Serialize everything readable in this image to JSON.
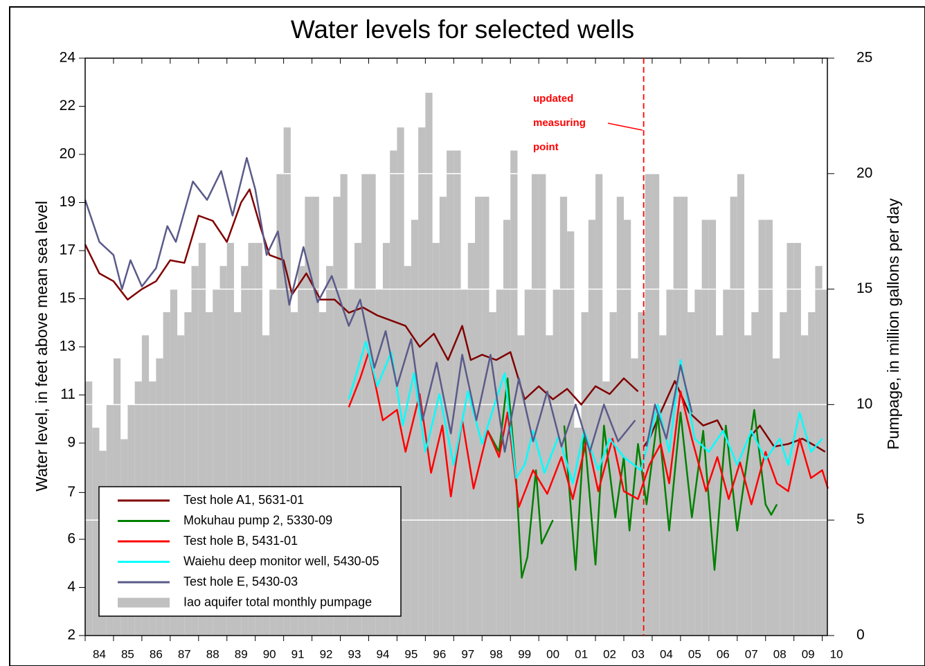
{
  "chart_data": {
    "type": "line",
    "title": "Water levels for selected wells",
    "y_label": "Water level, in feet above mean sea level",
    "y2_label": "Pumpage, in million gallons per day",
    "annotation_lines": [
      "updated",
      "measuring",
      "point"
    ],
    "annotation_color": "#ff0000",
    "marker_x": 2003.7,
    "xlim": [
      1984,
      2010.18
    ],
    "xticks": [
      {
        "value": 1984,
        "label": "84"
      },
      {
        "value": 1985,
        "label": "85"
      },
      {
        "value": 1986,
        "label": "86"
      },
      {
        "value": 1987,
        "label": "87"
      },
      {
        "value": 1988,
        "label": "88"
      },
      {
        "value": 1989,
        "label": "89"
      },
      {
        "value": 1990,
        "label": "90"
      },
      {
        "value": 1991,
        "label": "91"
      },
      {
        "value": 1992,
        "label": "92"
      },
      {
        "value": 1993,
        "label": "93"
      },
      {
        "value": 1994,
        "label": "94"
      },
      {
        "value": 1995,
        "label": "95"
      },
      {
        "value": 1996,
        "label": "96"
      },
      {
        "value": 1997,
        "label": "97"
      },
      {
        "value": 1998,
        "label": "98"
      },
      {
        "value": 1999,
        "label": "99"
      },
      {
        "value": 2000,
        "label": "00"
      },
      {
        "value": 2001,
        "label": "01"
      },
      {
        "value": 2002,
        "label": "02"
      },
      {
        "value": 2003,
        "label": "03"
      },
      {
        "value": 2004,
        "label": "04"
      },
      {
        "value": 2005,
        "label": "05"
      },
      {
        "value": 2006,
        "label": "06"
      },
      {
        "value": 2007,
        "label": "07"
      },
      {
        "value": 2008,
        "label": "08"
      },
      {
        "value": 2009,
        "label": "09"
      },
      {
        "value": 2010,
        "label": "10"
      }
    ],
    "ylim": [
      2,
      24
    ],
    "yticks": [
      2,
      {
        "value": 3.8333,
        "label": "4"
      },
      {
        "value": 5.6667,
        "label": "6"
      },
      {
        "value": 7.45,
        "label": "7"
      },
      {
        "value": 9.3333,
        "label": "9"
      },
      {
        "value": 11.1667,
        "label": "11"
      },
      13,
      {
        "value": 14.8333,
        "label": "15"
      },
      {
        "value": 16.6667,
        "label": "17"
      },
      {
        "value": 18.5,
        "label": "19"
      },
      {
        "value": 20.3333,
        "label": "20"
      },
      {
        "value": 22.1667,
        "label": "22"
      },
      24
    ],
    "y2lim": [
      0,
      25
    ],
    "y2ticks": [
      0,
      5,
      10,
      15,
      20,
      25
    ],
    "grid": true,
    "grid_color": "#ffffff",
    "legend": "lower left",
    "series": [
      {
        "name": "Test hole A1, 5631-01",
        "color": "#800000",
        "x": [
          1984,
          1984.5,
          1985,
          1985.5,
          1986,
          1986.5,
          1987,
          1987.5,
          1988,
          1988.5,
          1989,
          1989.5,
          1989.8,
          1990.2,
          1990.5,
          1991,
          1991.3,
          1991.8,
          1992.3,
          1992.8,
          1993.3,
          1993.8,
          1994.3,
          1994.8,
          1995.3,
          1995.8,
          1996.3,
          1996.8,
          1997.3,
          1997.6,
          1998,
          1998.5,
          1999,
          1999.5,
          2000,
          2000.5,
          2001,
          2001.5,
          2002,
          2002.5,
          2003,
          2003.5,
          2003.6,
          2003.7,
          2003.9,
          2004.3,
          2004.8,
          2005.3,
          2005.8,
          2006.3,
          2006.6,
          2007,
          2007.4,
          2007.8,
          2008.3,
          2008.8,
          2009.3,
          2009.8,
          2010.1
        ],
        "values": [
          16.9,
          15.8,
          15.5,
          14.8,
          15.2,
          15.5,
          16.3,
          16.2,
          18,
          17.8,
          17,
          18.5,
          19,
          17.5,
          16.5,
          16.3,
          15,
          15.8,
          14.8,
          14.8,
          14.3,
          14.5,
          14.2,
          14,
          13.8,
          13,
          13.5,
          12.5,
          13.8,
          12.5,
          12.7,
          12.5,
          12.8,
          11,
          11.5,
          11,
          11.4,
          10.8,
          11.5,
          11.2,
          11.8,
          11.3,
          null,
          9.2,
          9.5,
          10.5,
          11.7,
          10.5,
          10,
          10.2,
          9.6,
          null,
          9.5,
          10,
          9.2,
          9.3,
          9.5,
          9.2,
          9
        ]
      },
      {
        "name": "Mokuhau pump 2, 5330-09",
        "color": "#008000",
        "x": [
          1998.2,
          1998.6,
          1998.9,
          1999.2,
          1999.4,
          1999.6,
          1999.9,
          2000.1,
          2000.5,
          2000.7,
          2000.9,
          2001.3,
          2001.6,
          2002,
          2002.3,
          2002.7,
          2003,
          2003.2,
          2003.5,
          2003.8,
          2004.2,
          2004.6,
          2005,
          2005.4,
          2005.8,
          2006.2,
          2006.6,
          2007,
          2007.6,
          2008,
          2008.2,
          2008.4
        ],
        "values": [
          9.8,
          9,
          11.8,
          8,
          4.2,
          5,
          8.3,
          5.5,
          6.4,
          null,
          10,
          4.5,
          9.8,
          4.7,
          10,
          6.5,
          8.8,
          6,
          9.3,
          7,
          10.4,
          6,
          10.5,
          6.5,
          9.8,
          4.5,
          10,
          6,
          10.6,
          7,
          6.6,
          7
        ]
      },
      {
        "name": "Test hole B, 5431-01",
        "color": "#ff0000",
        "x": [
          1993.3,
          1993.7,
          1994,
          1994.5,
          1995,
          1995.3,
          1995.8,
          1996.2,
          1996.6,
          1996.9,
          1997.3,
          1997.7,
          1998.2,
          1998.6,
          1998.9,
          1999.3,
          1999.8,
          2000.3,
          2000.8,
          2001.2,
          2001.7,
          2002.1,
          2002.6,
          2003,
          2003.5,
          2003.9,
          2004.3,
          2004.6,
          2005,
          2005.4,
          2005.9,
          2006.3,
          2006.7,
          2007.1,
          2007.5,
          2008,
          2008.4,
          2008.8,
          2009.2,
          2009.6,
          2010,
          2010.2
        ],
        "values": [
          10.7,
          11.8,
          12.8,
          10.2,
          10.6,
          9,
          11.2,
          8.2,
          10,
          7.3,
          10.2,
          7.6,
          9.8,
          8.8,
          10.5,
          6.9,
          8.3,
          7.4,
          8.8,
          7.2,
          9.5,
          7.5,
          9.5,
          7.5,
          7.2,
          8.5,
          9.3,
          7.8,
          11.3,
          9.5,
          7.5,
          8.8,
          7.2,
          8.6,
          7,
          9,
          7.8,
          7.5,
          9.5,
          8,
          8.3,
          7.6
        ]
      },
      {
        "name": "Waiehu deep monitor well, 5430-05",
        "color": "#00ffff",
        "x": [
          1993.3,
          1993.9,
          1994.3,
          1994.8,
          1995.2,
          1995.6,
          1996,
          1996.5,
          1997,
          1997.5,
          1998,
          1998.5,
          1998.8,
          1999.2,
          1999.5,
          1999.8,
          2000.2,
          2000.7,
          2001.2,
          2001.6,
          2002.1,
          2002.5,
          2003,
          2003.6,
          2003.9,
          2004.2,
          2004.6,
          2005,
          2005.5,
          2006,
          2006.5,
          2007,
          2007.5,
          2008,
          2008.5,
          2008.8,
          2009.2,
          2009.6,
          2010
        ],
        "values": [
          11,
          13.2,
          11.5,
          12.8,
          10,
          12,
          9,
          11.2,
          8.5,
          11.3,
          9.3,
          11,
          12,
          8,
          8.5,
          9.8,
          8.2,
          9.6,
          7.8,
          9.8,
          8.3,
          9.5,
          8.8,
          8.3,
          9.5,
          10.8,
          9,
          12.5,
          9.5,
          9,
          9.8,
          8.5,
          9.8,
          8.7,
          9.5,
          8.5,
          10.5,
          9,
          9.5
        ]
      },
      {
        "name": "Test hole E, 5430-03",
        "color": "#5a5a8a",
        "x": [
          1984,
          1984.5,
          1985,
          1985.3,
          1985.6,
          1986,
          1986.5,
          1986.9,
          1987.2,
          1987.8,
          1988.3,
          1988.8,
          1989.2,
          1989.7,
          1990,
          1990.4,
          1990.8,
          1991.2,
          1991.7,
          1992.2,
          1992.7,
          1993.3,
          1993.7,
          1994.2,
          1994.6,
          1995,
          1995.5,
          1995.9,
          1996.4,
          1996.9,
          1997.3,
          1997.8,
          1998.3,
          1998.8,
          1999.3,
          1999.8,
          2000.3,
          2000.8,
          2001.3,
          2001.8,
          2002.3,
          2002.8,
          2003.4,
          2003.6,
          2003.8,
          2004.1,
          2004.5,
          2005,
          2005.4
        ],
        "values": [
          18.6,
          17,
          16.5,
          15.2,
          16.3,
          15.3,
          16,
          17.6,
          17,
          19.3,
          18.6,
          19.7,
          18,
          20.2,
          19,
          16.5,
          17.4,
          14.6,
          16.8,
          14.7,
          15.7,
          13.8,
          14.8,
          12.2,
          13.6,
          11.5,
          13.3,
          10.2,
          12.4,
          9.7,
          12.7,
          10.2,
          12.7,
          9,
          11.8,
          9.4,
          11.3,
          9.2,
          10.8,
          9,
          10.8,
          9.4,
          10.2,
          null,
          9.2,
          10.8,
          9.5,
          12.3,
          10.5
        ]
      },
      {
        "name": "Iao aquifer total monthly pumpage",
        "color": "#c0c0c0",
        "type": "bar",
        "axis": "y2",
        "x": [
          1984,
          1984.25,
          1984.5,
          1984.75,
          1985,
          1985.25,
          1985.5,
          1985.75,
          1986,
          1986.25,
          1986.5,
          1986.75,
          1987,
          1987.25,
          1987.5,
          1987.75,
          1988,
          1988.25,
          1988.5,
          1988.75,
          1989,
          1989.25,
          1989.5,
          1989.75,
          1990,
          1990.25,
          1990.5,
          1990.75,
          1991,
          1991.25,
          1991.5,
          1991.75,
          1992,
          1992.25,
          1992.5,
          1992.75,
          1993,
          1993.25,
          1993.5,
          1993.75,
          1994,
          1994.25,
          1994.5,
          1994.75,
          1995,
          1995.25,
          1995.5,
          1995.75,
          1996,
          1996.25,
          1996.5,
          1996.75,
          1997,
          1997.25,
          1997.5,
          1997.75,
          1998,
          1998.25,
          1998.5,
          1998.75,
          1999,
          1999.25,
          1999.5,
          1999.75,
          2000,
          2000.25,
          2000.5,
          2000.75,
          2001,
          2001.25,
          2001.5,
          2001.75,
          2002,
          2002.25,
          2002.5,
          2002.75,
          2003,
          2003.25,
          2003.5,
          2003.75,
          2004,
          2004.25,
          2004.5,
          2004.75,
          2005,
          2005.25,
          2005.5,
          2005.75,
          2006,
          2006.25,
          2006.5,
          2006.75,
          2007,
          2007.25,
          2007.5,
          2007.75,
          2008,
          2008.25,
          2008.5,
          2008.75,
          2009,
          2009.25,
          2009.5,
          2009.75,
          2010
        ],
        "values": [
          11,
          9,
          8,
          10,
          12,
          8.5,
          10,
          11,
          13,
          11,
          12,
          14,
          15,
          13,
          14,
          16,
          17,
          14,
          15,
          16,
          17,
          14,
          16,
          17,
          17,
          13,
          15,
          20,
          22,
          14,
          16,
          19,
          19,
          14,
          16,
          19,
          20,
          15,
          17,
          20,
          20,
          15,
          17,
          21,
          22,
          16,
          18,
          22,
          23.5,
          17,
          19,
          21,
          21,
          15,
          17,
          19,
          19,
          14,
          15,
          18,
          21,
          13,
          15,
          20,
          20,
          13,
          15,
          19,
          17.5,
          9,
          14,
          18,
          20,
          11,
          14,
          19,
          18,
          12,
          14,
          20,
          20,
          13,
          15,
          19,
          19,
          14,
          15,
          18,
          18,
          13,
          15,
          19,
          20,
          13,
          14,
          18,
          18,
          12,
          14,
          17,
          17,
          13,
          14,
          16,
          15
        ]
      }
    ]
  }
}
